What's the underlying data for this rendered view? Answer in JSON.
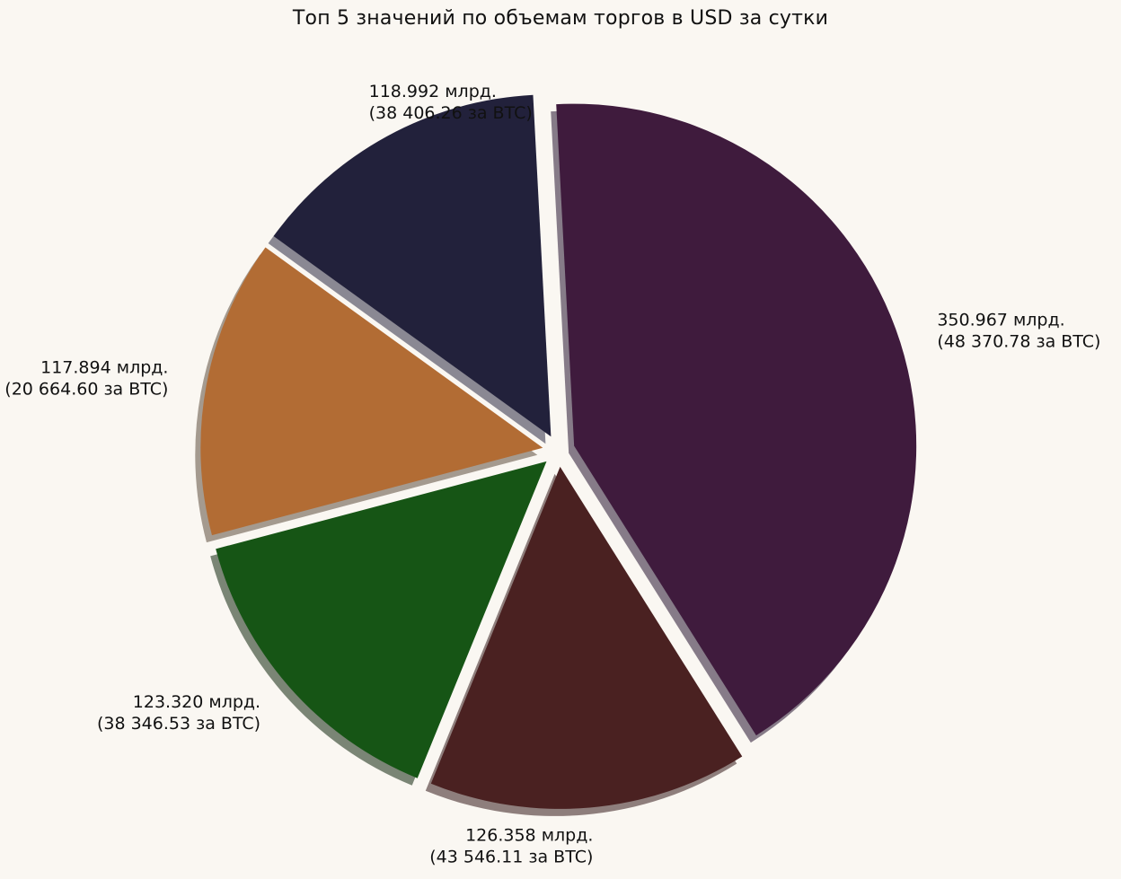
{
  "chart_data": {
    "type": "pie",
    "title": "Топ 5 значений по объемам торгов в USD за сутки",
    "start_angle_deg": 93,
    "explode": true,
    "shadow": true,
    "slices": [
      {
        "label_line1": "118.992 млрд.",
        "label_line2": "(38 406.26 за BTC)",
        "value": 118.992,
        "color": "#22213b",
        "shadow_color": "#8a8893",
        "label_anchor": "start"
      },
      {
        "label_line1": "117.894 млрд.",
        "label_line2": "(20 664.60 за BTC)",
        "value": 117.894,
        "color": "#b26c34",
        "shadow_color": "#a49a8f",
        "label_anchor": "end"
      },
      {
        "label_line1": "123.320 млрд.",
        "label_line2": "(38 346.53 за BTC)",
        "value": 123.32,
        "color": "#165515",
        "shadow_color": "#7a8575",
        "label_anchor": "end"
      },
      {
        "label_line1": "126.358 млрд.",
        "label_line2": "(43 546.11 за BTC)",
        "value": 126.358,
        "color": "#4a2121",
        "shadow_color": "#8e7e7c",
        "label_anchor": "end"
      },
      {
        "label_line1": "350.967 млрд.",
        "label_line2": "(48 370.78 за BTC)",
        "value": 350.967,
        "color": "#3f1b3d",
        "shadow_color": "#867b88",
        "label_anchor": "start"
      }
    ]
  }
}
